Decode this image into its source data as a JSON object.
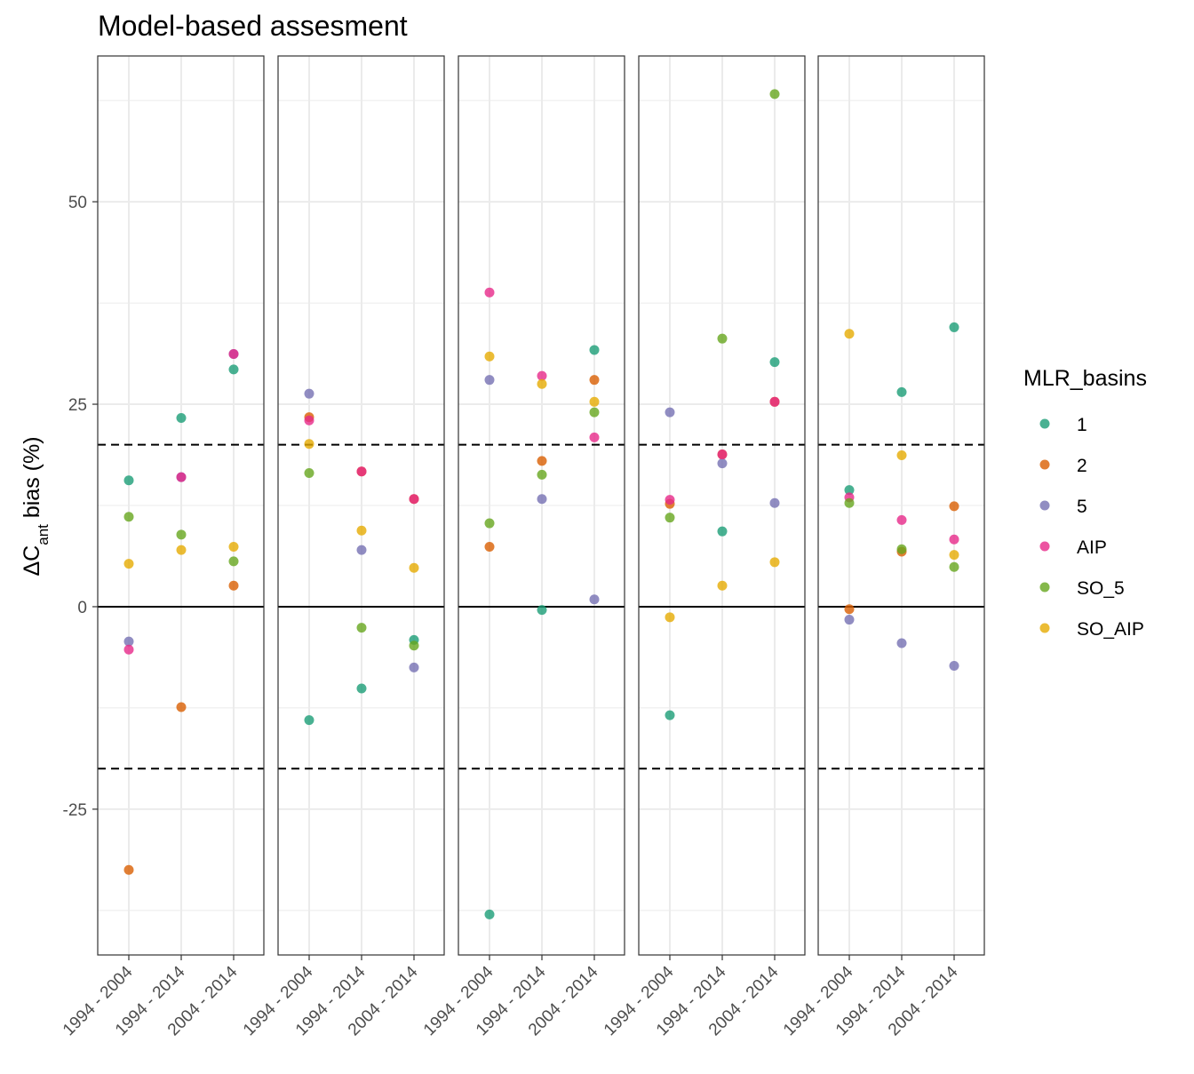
{
  "chart_data": {
    "type": "scatter",
    "title": "Model-based assesment",
    "ylabel": {
      "prefix": "ΔC",
      "subscript": "ant",
      "suffix": " bias (%)"
    },
    "ylim": [
      -43,
      68
    ],
    "yticks": [
      -25,
      0,
      25,
      50
    ],
    "ytick_labels": [
      "-25",
      "0",
      "25",
      "50"
    ],
    "reference_lines": {
      "solid": [
        0
      ],
      "dashed": [
        20,
        -20
      ]
    },
    "categories": [
      "1994 - 2004",
      "1994 - 2014",
      "2004 - 2014"
    ],
    "panel_count": 5,
    "grid": true,
    "legend": {
      "title": "MLR_basins",
      "position": "right",
      "items": [
        {
          "label": "1",
          "color": "#1B9E77"
        },
        {
          "label": "2",
          "color": "#D95F02"
        },
        {
          "label": "5",
          "color": "#7570B3"
        },
        {
          "label": "AIP",
          "color": "#E7298A"
        },
        {
          "label": "SO_5",
          "color": "#66A61E"
        },
        {
          "label": "SO_AIP",
          "color": "#E6AB02"
        }
      ]
    },
    "panels": [
      {
        "series": {
          "1": [
            15.6,
            23.3,
            29.3
          ],
          "2": [
            -32.5,
            -12.4,
            2.6
          ],
          "5": [
            -4.3,
            16.0,
            31.2
          ],
          "AIP": [
            -5.3,
            16.0,
            31.2
          ],
          "SO_5": [
            11.1,
            8.9,
            5.6
          ],
          "SO_AIP": [
            5.3,
            7.0,
            7.4
          ]
        }
      },
      {
        "series": {
          "1": [
            -14.0,
            -10.1,
            -4.1
          ],
          "2": [
            23.4,
            16.7,
            13.3
          ],
          "5": [
            26.3,
            7.0,
            -7.5
          ],
          "AIP": [
            23.0,
            16.7,
            13.3
          ],
          "SO_5": [
            16.5,
            -2.6,
            -4.8
          ],
          "SO_AIP": [
            20.1,
            9.4,
            4.8
          ]
        }
      },
      {
        "series": {
          "1": [
            -38.0,
            -0.4,
            31.7
          ],
          "2": [
            7.4,
            18.0,
            28.0
          ],
          "5": [
            28.0,
            13.3,
            0.9
          ],
          "AIP": [
            38.8,
            28.5,
            20.9
          ],
          "SO_5": [
            10.3,
            16.3,
            24.0
          ],
          "SO_AIP": [
            30.9,
            27.5,
            25.3
          ]
        }
      },
      {
        "series": {
          "1": [
            -13.4,
            9.3,
            30.2
          ],
          "2": [
            12.7,
            18.8,
            25.3
          ],
          "5": [
            24.0,
            17.7,
            12.8
          ],
          "AIP": [
            13.2,
            18.8,
            25.3
          ],
          "SO_5": [
            11.0,
            33.1,
            63.3
          ],
          "SO_AIP": [
            -1.3,
            2.6,
            5.5
          ]
        }
      },
      {
        "series": {
          "1": [
            14.4,
            26.5,
            34.5
          ],
          "2": [
            -0.3,
            6.8,
            12.4
          ],
          "5": [
            -1.6,
            -4.5,
            -7.3
          ],
          "AIP": [
            13.5,
            10.7,
            8.3
          ],
          "SO_5": [
            12.8,
            7.1,
            4.9
          ],
          "SO_AIP": [
            33.7,
            18.7,
            6.4
          ]
        }
      }
    ]
  }
}
